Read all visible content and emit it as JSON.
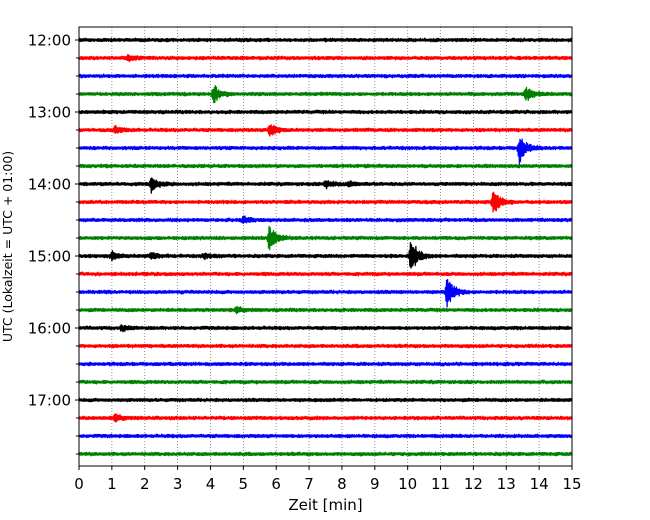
{
  "chart_data": {
    "type": "line",
    "title": "",
    "xlabel": "Zeit  [min]",
    "ylabel": "UTC (Lokalzeit = UTC + 01:00)",
    "xlim": [
      0,
      15
    ],
    "x_ticks": [
      "0",
      "1",
      "2",
      "3",
      "4",
      "5",
      "6",
      "7",
      "8",
      "9",
      "10",
      "11",
      "12",
      "13",
      "14",
      "15"
    ],
    "y_tick_labels": [
      "12:00",
      "13:00",
      "14:00",
      "15:00",
      "16:00",
      "17:00"
    ],
    "grid": "vertical dotted",
    "legend": "none",
    "trace_colors": [
      "#000000",
      "#ff0000",
      "#0000ff",
      "#008000"
    ],
    "row_interval_min": 15,
    "rows": [
      {
        "start": "12:00",
        "color": "#000000",
        "events": []
      },
      {
        "start": "12:15",
        "color": "#ff0000",
        "events": [
          {
            "t": 1.5,
            "amp": 0.2
          }
        ]
      },
      {
        "start": "12:30",
        "color": "#0000ff",
        "events": []
      },
      {
        "start": "12:45",
        "color": "#008000",
        "events": [
          {
            "t": 4.1,
            "amp": 0.55
          },
          {
            "t": 13.6,
            "amp": 0.5
          }
        ]
      },
      {
        "start": "13:00",
        "color": "#000000",
        "events": []
      },
      {
        "start": "13:15",
        "color": "#ff0000",
        "events": [
          {
            "t": 1.1,
            "amp": 0.2
          },
          {
            "t": 5.8,
            "amp": 0.45
          }
        ]
      },
      {
        "start": "13:30",
        "color": "#0000ff",
        "events": [
          {
            "t": 13.4,
            "amp": 0.8
          }
        ]
      },
      {
        "start": "13:45",
        "color": "#008000",
        "events": []
      },
      {
        "start": "14:00",
        "color": "#000000",
        "events": [
          {
            "t": 2.2,
            "amp": 0.45
          },
          {
            "t": 7.5,
            "amp": 0.25
          },
          {
            "t": 8.2,
            "amp": 0.15
          }
        ]
      },
      {
        "start": "14:15",
        "color": "#ff0000",
        "events": [
          {
            "t": 12.6,
            "amp": 0.7
          }
        ]
      },
      {
        "start": "14:30",
        "color": "#0000ff",
        "events": [
          {
            "t": 5.0,
            "amp": 0.2
          }
        ]
      },
      {
        "start": "14:45",
        "color": "#008000",
        "events": [
          {
            "t": 5.8,
            "amp": 0.8
          }
        ]
      },
      {
        "start": "15:00",
        "color": "#000000",
        "events": [
          {
            "t": 1.0,
            "amp": 0.25
          },
          {
            "t": 2.2,
            "amp": 0.2
          },
          {
            "t": 3.8,
            "amp": 0.15
          },
          {
            "t": 10.1,
            "amp": 1.0
          }
        ]
      },
      {
        "start": "15:15",
        "color": "#ff0000",
        "events": []
      },
      {
        "start": "15:30",
        "color": "#0000ff",
        "events": [
          {
            "t": 11.2,
            "amp": 0.9
          }
        ]
      },
      {
        "start": "15:45",
        "color": "#008000",
        "events": [
          {
            "t": 4.8,
            "amp": 0.15
          }
        ]
      },
      {
        "start": "16:00",
        "color": "#000000",
        "events": [
          {
            "t": 1.3,
            "amp": 0.15
          }
        ]
      },
      {
        "start": "16:15",
        "color": "#ff0000",
        "events": []
      },
      {
        "start": "16:30",
        "color": "#0000ff",
        "events": []
      },
      {
        "start": "16:45",
        "color": "#008000",
        "events": []
      },
      {
        "start": "17:00",
        "color": "#000000",
        "events": []
      },
      {
        "start": "17:15",
        "color": "#ff0000",
        "events": [
          {
            "t": 1.1,
            "amp": 0.2
          }
        ]
      },
      {
        "start": "17:30",
        "color": "#0000ff",
        "events": []
      },
      {
        "start": "17:45",
        "color": "#008000",
        "events": []
      }
    ]
  }
}
